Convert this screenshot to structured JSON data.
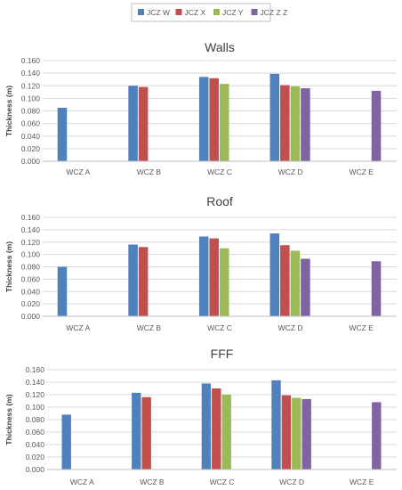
{
  "legend": {
    "position": "top-center",
    "items": [
      {
        "name": "JCZ W",
        "color": "#4f81bd"
      },
      {
        "name": "JCZ X",
        "color": "#c0504d"
      },
      {
        "name": "JCZ Y",
        "color": "#9bbb59"
      },
      {
        "name": "JCZ Z Z",
        "color": "#8064a2"
      }
    ]
  },
  "chart_data": [
    {
      "type": "bar",
      "title": "Walls",
      "xlabel": "",
      "ylabel": "Thickness (m)",
      "ylim": [
        0,
        0.16
      ],
      "yticks": [
        "0.000",
        "0.020",
        "0.040",
        "0.060",
        "0.080",
        "0.100",
        "0.120",
        "0.140",
        "0.160"
      ],
      "grid": true,
      "categories": [
        "WCZ A",
        "WCZ B",
        "WCZ C",
        "WCZ D",
        "WCZ E"
      ],
      "series": [
        {
          "name": "JCZ W",
          "values": [
            0.085,
            0.12,
            0.134,
            0.139,
            null
          ]
        },
        {
          "name": "JCZ X",
          "values": [
            null,
            0.118,
            0.132,
            0.121,
            null
          ]
        },
        {
          "name": "JCZ Y",
          "values": [
            null,
            null,
            0.123,
            0.119,
            null
          ]
        },
        {
          "name": "JCZ Z Z",
          "values": [
            null,
            null,
            null,
            0.116,
            0.112
          ]
        }
      ]
    },
    {
      "type": "bar",
      "title": "Roof",
      "xlabel": "",
      "ylabel": "Thickness (m)",
      "ylim": [
        0,
        0.16
      ],
      "yticks": [
        "0.000",
        "0.020",
        "0.040",
        "0.060",
        "0.080",
        "0.100",
        "0.120",
        "0.140",
        "0.160"
      ],
      "grid": true,
      "categories": [
        "WCZ A",
        "WCZ B",
        "WCZ C",
        "WCZ D",
        "WCZ E"
      ],
      "series": [
        {
          "name": "JCZ W",
          "values": [
            0.08,
            0.116,
            0.129,
            0.134,
            null
          ]
        },
        {
          "name": "JCZ X",
          "values": [
            null,
            0.112,
            0.126,
            0.115,
            null
          ]
        },
        {
          "name": "JCZ Y",
          "values": [
            null,
            null,
            0.11,
            0.106,
            null
          ]
        },
        {
          "name": "JCZ Z Z",
          "values": [
            null,
            null,
            null,
            0.093,
            0.089
          ]
        }
      ]
    },
    {
      "type": "bar",
      "title": "FFF",
      "xlabel": "",
      "ylabel": "Thickness (m)",
      "ylim": [
        0,
        0.16
      ],
      "yticks": [
        "0.000",
        "0.020",
        "0.040",
        "0.060",
        "0.080",
        "0.100",
        "0.120",
        "0.140",
        "0.160"
      ],
      "grid": true,
      "categories": [
        "WCZ A",
        "WCZ B",
        "WCZ C",
        "WCZ D",
        "WCZ E"
      ],
      "series": [
        {
          "name": "JCZ W",
          "values": [
            0.088,
            0.123,
            0.138,
            0.143,
            null
          ]
        },
        {
          "name": "JCZ X",
          "values": [
            null,
            0.116,
            0.13,
            0.119,
            null
          ]
        },
        {
          "name": "JCZ Y",
          "values": [
            null,
            null,
            0.12,
            0.115,
            null
          ]
        },
        {
          "name": "JCZ Z Z",
          "values": [
            null,
            null,
            null,
            0.113,
            0.108
          ]
        }
      ]
    }
  ]
}
